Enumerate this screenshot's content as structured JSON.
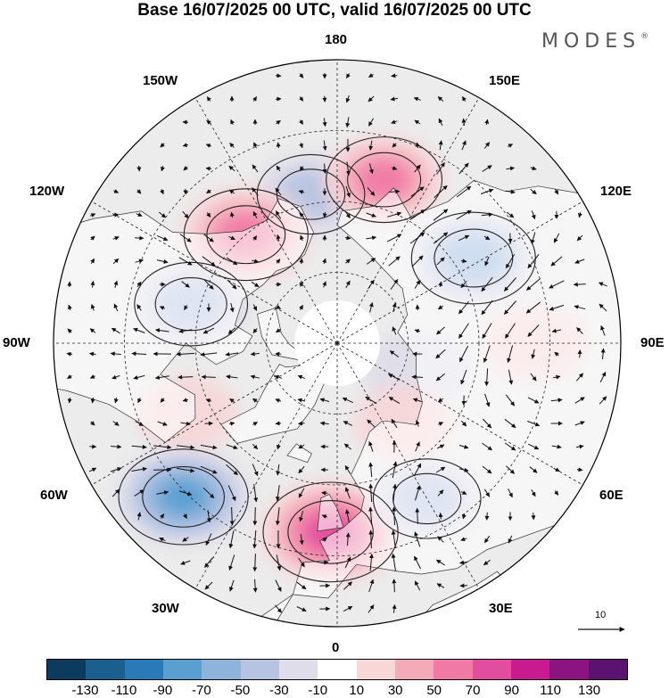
{
  "title": "Base 16/07/2025 00 UTC, valid 16/07/2025 00 UTC",
  "brand": {
    "name": "MODES",
    "mark": "®"
  },
  "map": {
    "projection": "north-polar-stereographic",
    "longitude_labels": {
      "top": "180",
      "bottom": "0",
      "left": "90W",
      "right": "90E",
      "upper_left": "150W",
      "upper_right": "150E",
      "mid_left": "120W",
      "mid_right": "120E",
      "lower_left": "60W",
      "lower_right": "60E",
      "bottom_left": "30W",
      "bottom_right": "30E"
    },
    "reference_vector_label": "10",
    "colors": {
      "ocean": "#ececec",
      "land": "#ffffff",
      "coast": "#333333",
      "grid": "#222222"
    }
  },
  "colorbar": {
    "colors": [
      "#0d3b5e",
      "#1a5f8e",
      "#2b7ab8",
      "#5a9fd0",
      "#8eb4dc",
      "#b6c4e2",
      "#dedde9",
      "#ffffff",
      "#f7d7d8",
      "#f4aab8",
      "#f07aa4",
      "#e24d9e",
      "#c81b8f",
      "#8b1480",
      "#5b1270"
    ],
    "ticks": [
      "-130",
      "-110",
      "-90",
      "-70",
      "-50",
      "-30",
      "-10",
      "10",
      "30",
      "50",
      "70",
      "90",
      "110",
      "130"
    ]
  },
  "anomalies": [
    {
      "lon": -170,
      "lat": 58,
      "value": -40
    },
    {
      "lon": 164,
      "lat": 54,
      "value": 55
    },
    {
      "lon": 122,
      "lat": 56,
      "value": -70
    },
    {
      "lon": -140,
      "lat": 60,
      "value": 70
    },
    {
      "lon": -105,
      "lat": 58,
      "value": -50
    },
    {
      "lon": 90,
      "lat": 48,
      "value": 30
    },
    {
      "lon": 70,
      "lat": 72,
      "value": -30
    },
    {
      "lon": -65,
      "lat": 55,
      "value": 20
    },
    {
      "lon": 40,
      "lat": 68,
      "value": 20
    },
    {
      "lon": -45,
      "lat": 44,
      "value": -80
    },
    {
      "lon": -2,
      "lat": 50,
      "value": 90
    },
    {
      "lon": 30,
      "lat": 52,
      "value": -40
    }
  ]
}
